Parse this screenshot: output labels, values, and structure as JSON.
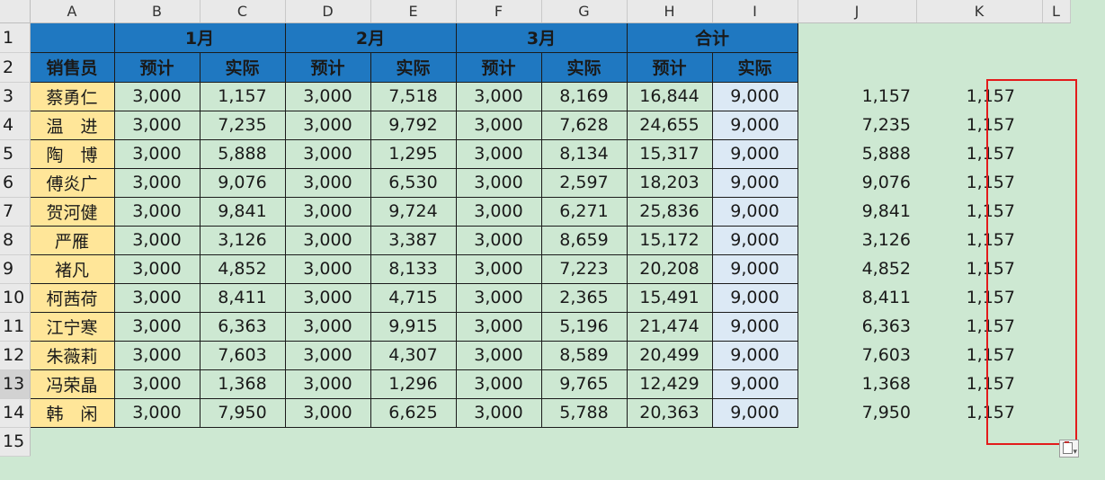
{
  "columns": [
    "A",
    "B",
    "C",
    "D",
    "E",
    "F",
    "G",
    "H",
    "I",
    "J",
    "K",
    "L"
  ],
  "rows": [
    "1",
    "2",
    "3",
    "4",
    "5",
    "6",
    "7",
    "8",
    "9",
    "10",
    "11",
    "12",
    "13",
    "14",
    "15"
  ],
  "header_row1": [
    "1月",
    "2月",
    "3月",
    "合计"
  ],
  "header_row2": {
    "salesperson": "销售员",
    "labels": [
      "预计",
      "实际",
      "预计",
      "实际",
      "预计",
      "实际",
      "预计",
      "实际"
    ]
  },
  "records": [
    {
      "name": "蔡勇仁",
      "values": [
        "3,000",
        "1,157",
        "3,000",
        "7,518",
        "3,000",
        "8,169",
        "16,844",
        "9,000"
      ],
      "j": "1,157",
      "k": "1,157"
    },
    {
      "name": "温　进",
      "values": [
        "3,000",
        "7,235",
        "3,000",
        "9,792",
        "3,000",
        "7,628",
        "24,655",
        "9,000"
      ],
      "j": "7,235",
      "k": "1,157"
    },
    {
      "name": "陶　博",
      "values": [
        "3,000",
        "5,888",
        "3,000",
        "1,295",
        "3,000",
        "8,134",
        "15,317",
        "9,000"
      ],
      "j": "5,888",
      "k": "1,157"
    },
    {
      "name": "傅炎广",
      "values": [
        "3,000",
        "9,076",
        "3,000",
        "6,530",
        "3,000",
        "2,597",
        "18,203",
        "9,000"
      ],
      "j": "9,076",
      "k": "1,157"
    },
    {
      "name": "贺河健",
      "values": [
        "3,000",
        "9,841",
        "3,000",
        "9,724",
        "3,000",
        "6,271",
        "25,836",
        "9,000"
      ],
      "j": "9,841",
      "k": "1,157"
    },
    {
      "name": "严雁",
      "values": [
        "3,000",
        "3,126",
        "3,000",
        "3,387",
        "3,000",
        "8,659",
        "15,172",
        "9,000"
      ],
      "j": "3,126",
      "k": "1,157"
    },
    {
      "name": "褚凡",
      "values": [
        "3,000",
        "4,852",
        "3,000",
        "8,133",
        "3,000",
        "7,223",
        "20,208",
        "9,000"
      ],
      "j": "4,852",
      "k": "1,157"
    },
    {
      "name": "柯茜荷",
      "values": [
        "3,000",
        "8,411",
        "3,000",
        "4,715",
        "3,000",
        "2,365",
        "15,491",
        "9,000"
      ],
      "j": "8,411",
      "k": "1,157"
    },
    {
      "name": "江宁寒",
      "values": [
        "3,000",
        "6,363",
        "3,000",
        "9,915",
        "3,000",
        "5,196",
        "21,474",
        "9,000"
      ],
      "j": "6,363",
      "k": "1,157"
    },
    {
      "name": "朱薇莉",
      "values": [
        "3,000",
        "7,603",
        "3,000",
        "4,307",
        "3,000",
        "8,589",
        "20,499",
        "9,000"
      ],
      "j": "7,603",
      "k": "1,157"
    },
    {
      "name": "冯荣晶",
      "values": [
        "3,000",
        "1,368",
        "3,000",
        "1,296",
        "3,000",
        "9,765",
        "12,429",
        "9,000"
      ],
      "j": "1,368",
      "k": "1,157"
    },
    {
      "name": "韩　闲",
      "values": [
        "3,000",
        "7,950",
        "3,000",
        "6,625",
        "3,000",
        "5,788",
        "20,363",
        "9,000"
      ],
      "j": "7,950",
      "k": "1,157"
    }
  ],
  "colors": {
    "header_blue": "#1f78c1",
    "name_yellow": "#ffe699",
    "sheet_green": "#cde8d2",
    "total_blue": "#dce9f5",
    "selection_red": "#e31b1b"
  },
  "icons": {
    "paste_options": "paste-options-icon"
  }
}
